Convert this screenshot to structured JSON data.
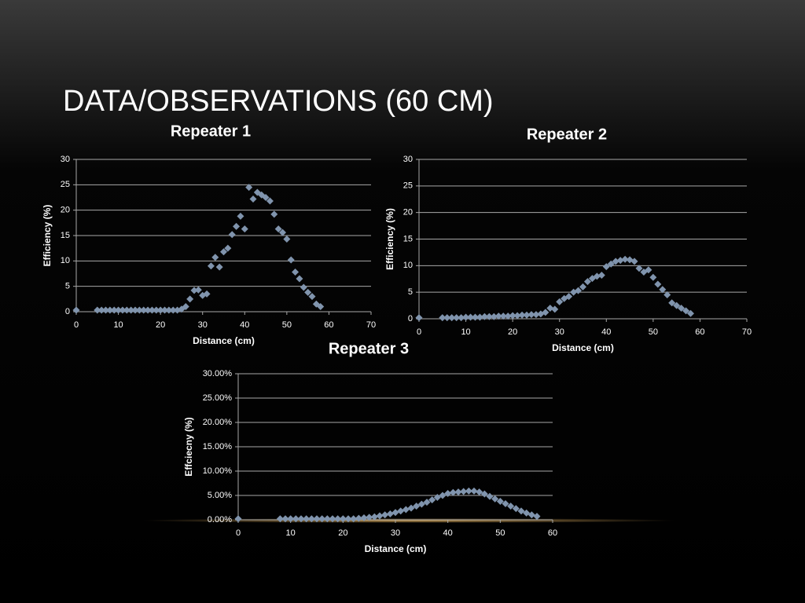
{
  "title": "DATA/OBSERVATIONS (60 CM)",
  "chart_data": [
    {
      "type": "scatter",
      "title": "Repeater 1",
      "xlabel": "Distance (cm)",
      "ylabel": "Efficiency (%)",
      "color": "#8094ad",
      "grid": true,
      "xlim": [
        0,
        70
      ],
      "xticks": [
        0,
        10,
        20,
        30,
        40,
        50,
        60,
        70
      ],
      "ylim": [
        0,
        30
      ],
      "yticks": [
        0,
        5,
        10,
        15,
        20,
        25,
        30
      ],
      "series": [
        {
          "x": [
            0,
            5,
            6,
            7,
            8,
            9,
            10,
            11,
            12,
            13,
            14,
            15,
            16,
            17,
            18,
            19,
            20,
            21,
            22,
            23,
            24,
            25,
            26,
            27,
            28,
            29,
            30,
            31,
            32,
            33,
            34,
            35,
            36,
            37,
            38,
            39,
            40,
            41,
            42,
            43,
            44,
            45,
            46,
            47,
            48,
            49,
            50,
            51,
            52,
            53,
            54,
            55,
            56,
            57,
            58
          ],
          "values": [
            0.3,
            0.3,
            0.3,
            0.3,
            0.3,
            0.3,
            0.3,
            0.3,
            0.3,
            0.3,
            0.3,
            0.3,
            0.3,
            0.3,
            0.3,
            0.3,
            0.3,
            0.3,
            0.3,
            0.3,
            0.3,
            0.5,
            1,
            2.5,
            4.2,
            4.3,
            3.2,
            3.5,
            9,
            10.7,
            8.8,
            11.8,
            12.5,
            15.2,
            16.8,
            18.8,
            16.3,
            24.5,
            22.2,
            23.5,
            23,
            22.5,
            21.8,
            19.2,
            16.3,
            15.6,
            14.3,
            10.2,
            7.8,
            6.5,
            4.8,
            3.8,
            3,
            1.5,
            1
          ]
        }
      ]
    },
    {
      "type": "scatter",
      "title": "Repeater 2",
      "xlabel": "Distance (cm)",
      "ylabel": "Efficiency (%)",
      "color": "#8094ad",
      "grid": true,
      "xlim": [
        0,
        70
      ],
      "xticks": [
        0,
        10,
        20,
        30,
        40,
        50,
        60,
        70
      ],
      "ylim": [
        0,
        30
      ],
      "yticks": [
        0,
        5,
        10,
        15,
        20,
        25,
        30
      ],
      "series": [
        {
          "x": [
            0,
            5,
            6,
            7,
            8,
            9,
            10,
            11,
            12,
            13,
            14,
            15,
            16,
            17,
            18,
            19,
            20,
            21,
            22,
            23,
            24,
            25,
            26,
            27,
            28,
            29,
            30,
            31,
            32,
            33,
            34,
            35,
            36,
            37,
            38,
            39,
            40,
            41,
            42,
            43,
            44,
            45,
            46,
            47,
            48,
            49,
            50,
            51,
            52,
            53,
            54,
            55,
            56,
            57,
            58
          ],
          "values": [
            0.2,
            0.2,
            0.2,
            0.2,
            0.2,
            0.2,
            0.3,
            0.3,
            0.3,
            0.3,
            0.4,
            0.4,
            0.4,
            0.5,
            0.5,
            0.5,
            0.6,
            0.6,
            0.7,
            0.7,
            0.8,
            0.8,
            0.9,
            1.2,
            2,
            1.8,
            3.2,
            3.8,
            4.2,
            5,
            5.3,
            6,
            7,
            7.6,
            8,
            8.2,
            9.8,
            10.3,
            10.8,
            11,
            11.2,
            11.1,
            10.8,
            9.5,
            8.8,
            9.2,
            7.8,
            6.5,
            5.5,
            4.5,
            3,
            2.5,
            2,
            1.5,
            1
          ]
        }
      ]
    },
    {
      "type": "scatter",
      "title": "Repeater 3",
      "xlabel": "Distance (cm)",
      "ylabel": "Effciecny (%)",
      "color": "#8094ad",
      "grid": true,
      "xlim": [
        0,
        60
      ],
      "xticks": [
        0,
        10,
        20,
        30,
        40,
        50,
        60
      ],
      "ylim": [
        0,
        30
      ],
      "yticks": [
        {
          "value": 0,
          "label": "0.00%"
        },
        {
          "value": 5,
          "label": "5.00%"
        },
        {
          "value": 10,
          "label": "10.00%"
        },
        {
          "value": 15,
          "label": "15.00%"
        },
        {
          "value": 20,
          "label": "20.00%"
        },
        {
          "value": 25,
          "label": "25.00%"
        },
        {
          "value": 30,
          "label": "30.00%"
        }
      ],
      "series": [
        {
          "x": [
            0,
            8,
            9,
            10,
            11,
            12,
            13,
            14,
            15,
            16,
            17,
            18,
            19,
            20,
            21,
            22,
            23,
            24,
            25,
            26,
            27,
            28,
            29,
            30,
            31,
            32,
            33,
            34,
            35,
            36,
            37,
            38,
            39,
            40,
            41,
            42,
            43,
            44,
            45,
            46,
            47,
            48,
            49,
            50,
            51,
            52,
            53,
            54,
            55,
            56,
            57
          ],
          "values": [
            0.2,
            0.2,
            0.2,
            0.2,
            0.2,
            0.2,
            0.2,
            0.2,
            0.2,
            0.2,
            0.2,
            0.2,
            0.2,
            0.2,
            0.2,
            0.2,
            0.3,
            0.4,
            0.5,
            0.6,
            0.8,
            1.0,
            1.2,
            1.5,
            1.8,
            2.1,
            2.4,
            2.8,
            3.2,
            3.6,
            4.1,
            4.6,
            5.0,
            5.4,
            5.6,
            5.7,
            5.8,
            5.9,
            5.9,
            5.7,
            5.3,
            4.8,
            4.3,
            3.8,
            3.3,
            2.8,
            2.3,
            1.8,
            1.4,
            1.0,
            0.7
          ]
        }
      ]
    }
  ]
}
